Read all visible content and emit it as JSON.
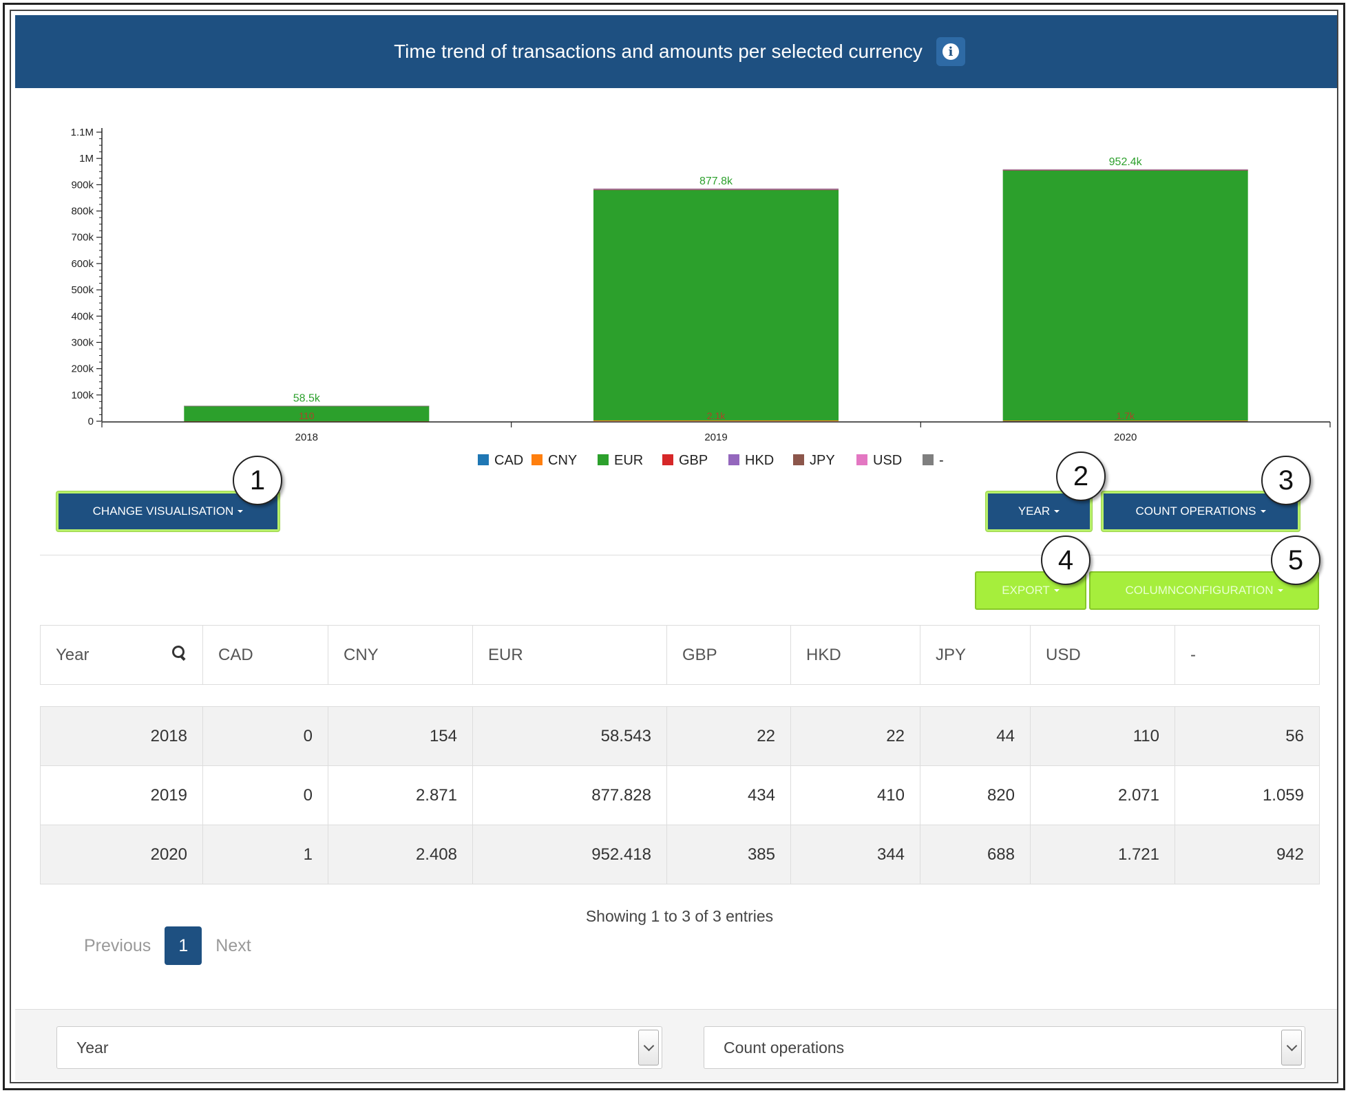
{
  "header": {
    "title": "Time trend of transactions and amounts per selected currency",
    "info_icon": "info-icon"
  },
  "chart_data": {
    "type": "bar",
    "stacked": true,
    "categories": [
      "2018",
      "2019",
      "2020"
    ],
    "series": [
      {
        "name": "CAD",
        "color": "#1f77b4",
        "values": [
          0,
          0,
          1
        ]
      },
      {
        "name": "CNY",
        "color": "#ff7f0e",
        "values": [
          154,
          2871,
          2408
        ]
      },
      {
        "name": "EUR",
        "color": "#2ca02c",
        "values": [
          58543,
          877828,
          952418
        ]
      },
      {
        "name": "GBP",
        "color": "#d62728",
        "values": [
          22,
          434,
          385
        ]
      },
      {
        "name": "HKD",
        "color": "#9467bd",
        "values": [
          22,
          410,
          344
        ]
      },
      {
        "name": "JPY",
        "color": "#8c564b",
        "values": [
          44,
          820,
          688
        ]
      },
      {
        "name": "USD",
        "color": "#e377c2",
        "values": [
          110,
          2071,
          1721
        ]
      },
      {
        "name": "-",
        "color": "#7f7f7f",
        "values": [
          56,
          1059,
          942
        ]
      }
    ],
    "bar_labels": [
      "58.5k",
      "877.8k",
      "952.4k"
    ],
    "small_labels": [
      "110",
      "2.1k",
      "1.7k"
    ],
    "yticks": [
      "0",
      "100k",
      "200k",
      "300k",
      "400k",
      "500k",
      "600k",
      "700k",
      "800k",
      "900k",
      "1M",
      "1.1M"
    ],
    "ylim": [
      0,
      1100000
    ],
    "legend_placement": "bottom-center"
  },
  "buttons": {
    "change_visualisation": "CHANGE VISUALISATION",
    "year": "YEAR",
    "count_operations": "COUNT OPERATIONS",
    "export": "EXPORT",
    "column_configuration": "COLUMNCONFIGURATION"
  },
  "callouts": [
    "1",
    "2",
    "3",
    "4",
    "5"
  ],
  "table": {
    "headers": [
      "Year",
      "CAD",
      "CNY",
      "EUR",
      "GBP",
      "HKD",
      "JPY",
      "USD",
      "-"
    ],
    "rows": [
      [
        "2018",
        "0",
        "154",
        "58.543",
        "22",
        "22",
        "44",
        "110",
        "56"
      ],
      [
        "2019",
        "0",
        "2.871",
        "877.828",
        "434",
        "410",
        "820",
        "2.071",
        "1.059"
      ],
      [
        "2020",
        "1",
        "2.408",
        "952.418",
        "385",
        "344",
        "688",
        "1.721",
        "942"
      ]
    ]
  },
  "pagination": {
    "info": "Showing 1 to 3 of 3 entries",
    "previous": "Previous",
    "page": "1",
    "next": "Next"
  },
  "footer": {
    "select_left": "Year",
    "select_right": "Count operations"
  }
}
